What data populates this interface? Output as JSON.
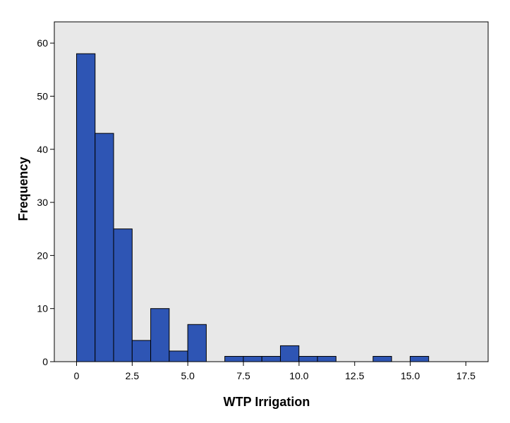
{
  "chart_data": {
    "type": "bar",
    "title": "",
    "xlabel": "WTP Irrigation",
    "ylabel": "Frequency",
    "xlim": [
      -1,
      18.5
    ],
    "ylim": [
      0,
      64
    ],
    "bin_width": 0.833,
    "bin_start": 0,
    "x_ticks": [
      "0",
      "2.5",
      "5.0",
      "7.5",
      "10.0",
      "12.5",
      "15.0",
      "17.5"
    ],
    "x_tick_values": [
      0,
      2.5,
      5.0,
      7.5,
      10.0,
      12.5,
      15.0,
      17.5
    ],
    "y_ticks": [
      "0",
      "10",
      "20",
      "30",
      "40",
      "50",
      "60"
    ],
    "y_tick_values": [
      0,
      10,
      20,
      30,
      40,
      50,
      60
    ],
    "values": [
      58,
      43,
      25,
      4,
      10,
      2,
      7,
      0,
      1,
      1,
      1,
      3,
      1,
      1,
      0,
      0,
      1,
      0,
      1
    ],
    "grid": false,
    "legend": "none",
    "colors": {
      "bar": "#2e55b4",
      "plot_bg": "#e8e8e8",
      "frame": "#000000"
    }
  }
}
